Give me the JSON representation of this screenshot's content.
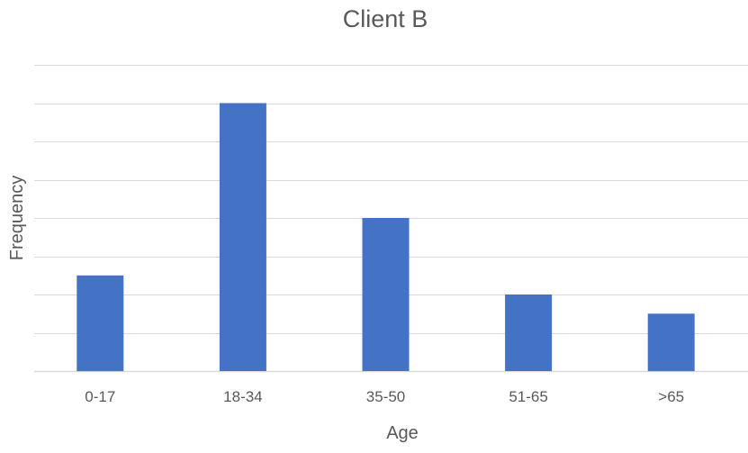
{
  "chart_data": {
    "type": "bar",
    "title": "Client B",
    "xlabel": "Age",
    "ylabel": "Frequency",
    "categories": [
      "0-17",
      "18-34",
      "35-50",
      "51-65",
      ">65"
    ],
    "values": [
      5,
      14,
      8,
      4,
      3
    ],
    "ylim": [
      0,
      16
    ],
    "y_tick_step": 2,
    "y_tick_labels_shown": false,
    "grid": true,
    "legend": "none",
    "bar_color": "#4472C4",
    "grid_color": "#D9D9D9",
    "text_color": "#595959"
  }
}
